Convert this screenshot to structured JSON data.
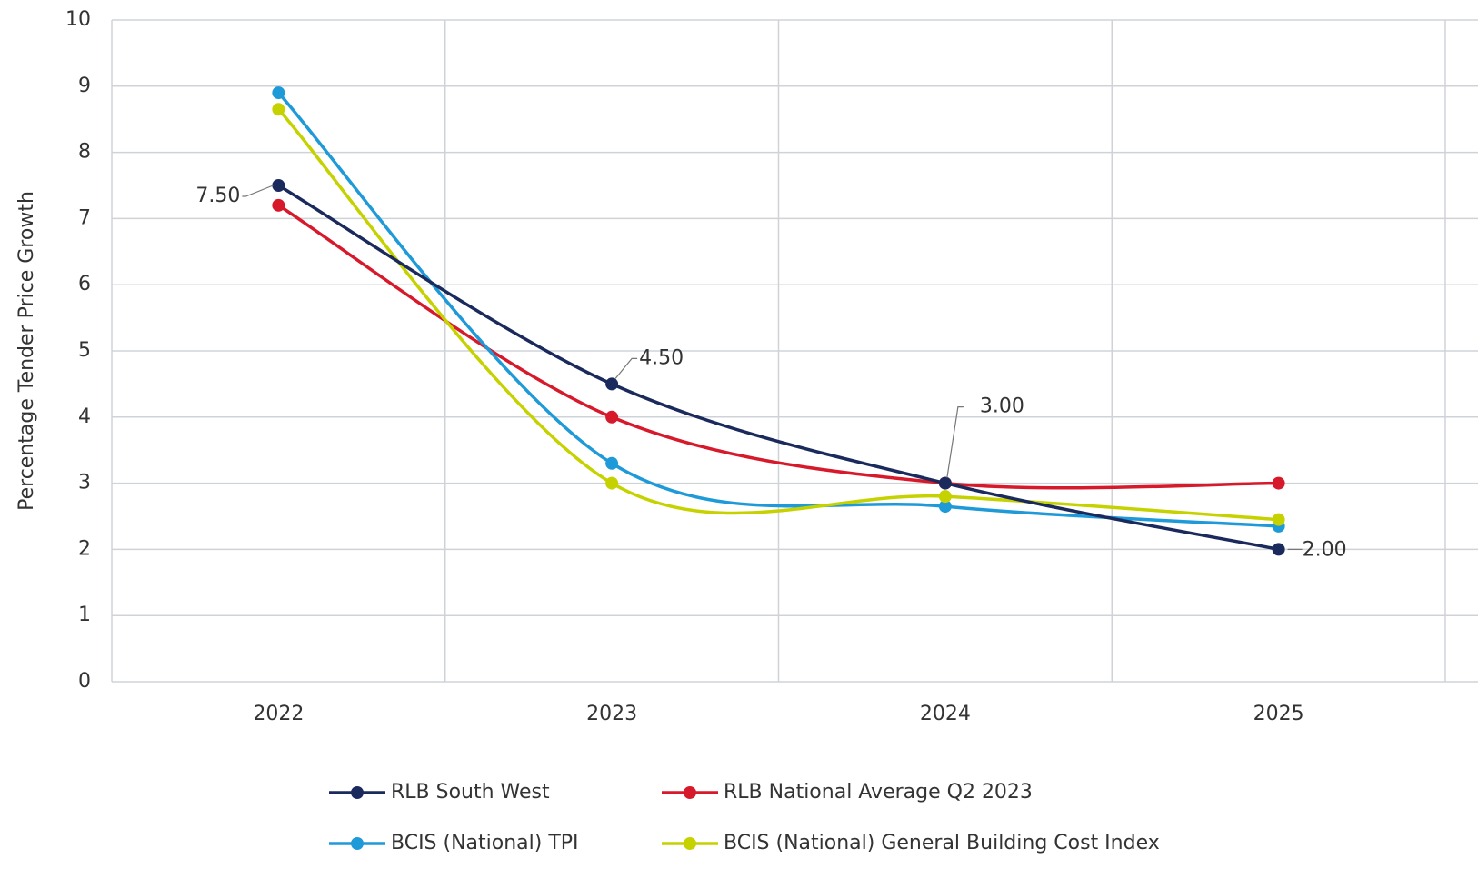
{
  "chart_data": {
    "type": "line",
    "y_label": "Percentage Tender Price Growth",
    "categories": [
      "2022",
      "2023",
      "2024",
      "2025"
    ],
    "ylim": [
      0,
      10
    ],
    "yticks": [
      0,
      1,
      2,
      3,
      4,
      5,
      6,
      7,
      8,
      9,
      10
    ],
    "grid": true,
    "series": [
      {
        "name": "RLB South West",
        "color": "#1b2a5c",
        "values": [
          7.5,
          4.5,
          3.0,
          2.0
        ],
        "value_labels": [
          "7.50",
          "4.50",
          "3.00",
          "2.00"
        ]
      },
      {
        "name": "RLB National Average Q2 2023",
        "color": "#d71a2b",
        "values": [
          7.2,
          4.0,
          3.0,
          3.0
        ]
      },
      {
        "name": "BCIS (National) TPI",
        "color": "#1f9ad8",
        "values": [
          8.9,
          3.3,
          2.65,
          2.35
        ]
      },
      {
        "name": "BCIS (National) General Building Cost Index",
        "color": "#c6d200",
        "values": [
          8.65,
          3.0,
          2.8,
          2.45
        ]
      }
    ]
  }
}
